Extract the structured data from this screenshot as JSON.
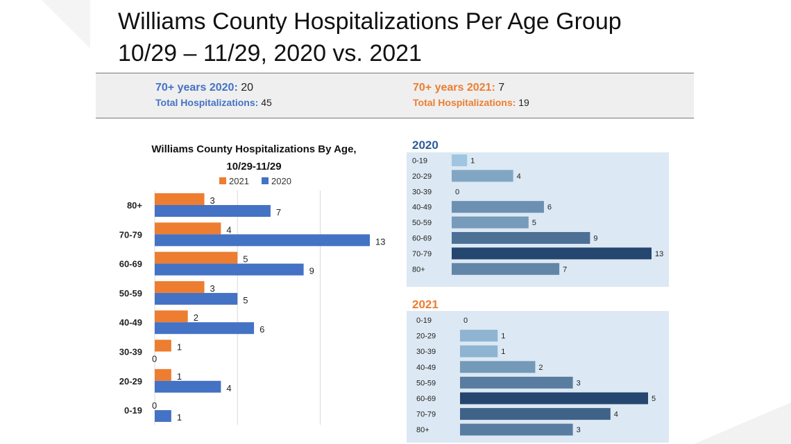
{
  "slide": {
    "title_line1": "Williams County Hospitalizations Per Age Group",
    "title_line2": "10/29 – 11/29,  2020 vs. 2021"
  },
  "summary": {
    "left": {
      "label1": "70+ years 2020:",
      "value1": "20",
      "label2": "Total Hospitalizations:",
      "value2": "45",
      "color": "#4472c4"
    },
    "right": {
      "label1": "70+ years 2021:",
      "value1": "7",
      "label2": "Total Hospitalizations:",
      "value2": "19",
      "color": "#ed7d31"
    }
  },
  "chart_data": [
    {
      "type": "bar",
      "orientation": "horizontal",
      "title": "Williams County Hospitalizations By Age,",
      "subtitle": "10/29-11/29",
      "categories": [
        "80+",
        "70-79",
        "60-69",
        "50-59",
        "40-49",
        "30-39",
        "20-29",
        "0-19"
      ],
      "series": [
        {
          "name": "2021",
          "color": "#ed7d31",
          "values": [
            3,
            4,
            5,
            3,
            2,
            1,
            1,
            0
          ]
        },
        {
          "name": "2020",
          "color": "#4472c4",
          "values": [
            7,
            13,
            9,
            5,
            6,
            0,
            4,
            1
          ]
        }
      ],
      "xlim": [
        0,
        13
      ],
      "grid": true,
      "legend": "top"
    },
    {
      "type": "bar",
      "orientation": "horizontal",
      "title": "2020",
      "title_color": "#2e5c9a",
      "categories": [
        "0-19",
        "20-29",
        "30-39",
        "40-49",
        "50-59",
        "60-69",
        "70-79",
        "80+"
      ],
      "values": [
        1,
        4,
        0,
        6,
        5,
        9,
        13,
        7
      ],
      "xlim": [
        0,
        13
      ],
      "background": "#dce8f3",
      "color_scale": [
        "#a9d0ea",
        "#24466f"
      ]
    },
    {
      "type": "bar",
      "orientation": "horizontal",
      "title": "2021",
      "title_color": "#ed7d31",
      "categories": [
        "0-19",
        "20-29",
        "30-39",
        "40-49",
        "50-59",
        "60-69",
        "70-79",
        "80+"
      ],
      "values": [
        0,
        1,
        1,
        2,
        3,
        5,
        4,
        3
      ],
      "xlim": [
        0,
        5
      ],
      "background": "#dce8f3",
      "color_scale": [
        "#a9d0ea",
        "#24466f"
      ]
    }
  ]
}
